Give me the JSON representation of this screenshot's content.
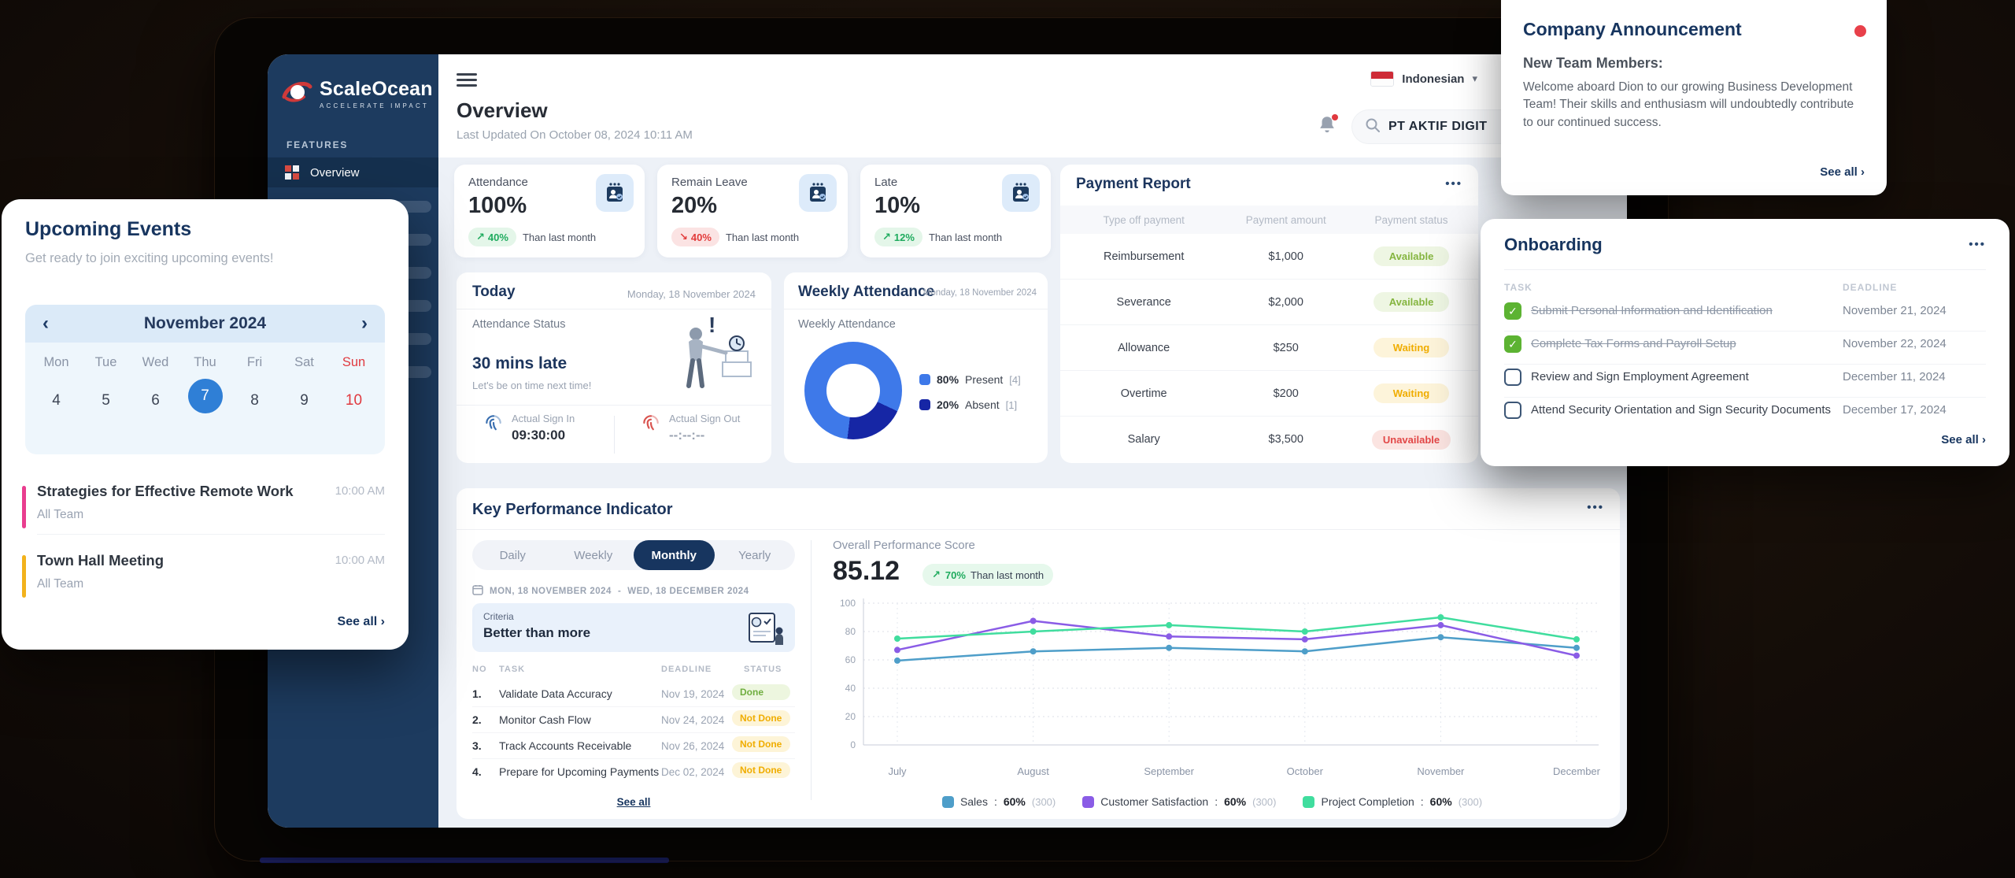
{
  "icons": {
    "ellipsis": "•••",
    "chevron_right": "›",
    "chevron_left": "‹",
    "chevron_down": "▾",
    "check": "✓",
    "trend_up": "↗",
    "trend_down": "↘"
  },
  "sidebar": {
    "logo_title": "ScaleOcean",
    "logo_subtitle": "ACCELERATE IMPACT",
    "section_label": "FEATURES",
    "active_item": "Overview"
  },
  "header": {
    "language": "Indonesian",
    "search_value": "PT AKTIF DIGIT",
    "page_title": "Overview",
    "last_updated": "Last Updated On October 08, 2024 10:11 AM"
  },
  "stats": [
    {
      "label": "Attendance",
      "value": "100%",
      "delta": "40%",
      "trend": "up",
      "note": "Than last month"
    },
    {
      "label": "Remain Leave",
      "value": "20%",
      "delta": "40%",
      "trend": "down",
      "note": "Than last month"
    },
    {
      "label": "Late",
      "value": "10%",
      "delta": "12%",
      "trend": "up",
      "note": "Than last month"
    }
  ],
  "today": {
    "title": "Today",
    "date": "Monday, 18 November 2024",
    "status_label": "Attendance Status",
    "status_value": "30 mins late",
    "status_note": "Let's be on time next time!",
    "sign_in_label": "Actual Sign In",
    "sign_in_value": "09:30:00",
    "sign_out_label": "Actual Sign Out",
    "sign_out_value": "--:--:--"
  },
  "weekly_attendance": {
    "title": "Weekly Attendance",
    "date": "Monday, 18 November 2024",
    "subtitle": "Weekly Attendance",
    "donut": {
      "present_pct": 80,
      "absent_pct": 20,
      "present_color": "#3e79e9",
      "absent_color": "#1626a5"
    },
    "legend": [
      {
        "pct": "80%",
        "label": "Present",
        "count": "[4]"
      },
      {
        "pct": "20%",
        "label": "Absent",
        "count": "[1]"
      }
    ]
  },
  "payment_report": {
    "title": "Payment Report",
    "columns": [
      "Type off payment",
      "Payment amount",
      "Payment status"
    ],
    "rows": [
      {
        "type": "Reimbursement",
        "amount": "$1,000",
        "status": "Available"
      },
      {
        "type": "Severance",
        "amount": "$2,000",
        "status": "Available"
      },
      {
        "type": "Allowance",
        "amount": "$250",
        "status": "Waiting"
      },
      {
        "type": "Overtime",
        "amount": "$200",
        "status": "Waiting"
      },
      {
        "type": "Salary",
        "amount": "$3,500",
        "status": "Unavailable"
      }
    ]
  },
  "kpi": {
    "title": "Key Performance Indicator",
    "tabs": [
      "Daily",
      "Weekly",
      "Monthly",
      "Yearly"
    ],
    "active_tab": "Monthly",
    "date_range_start": "MON, 18 NOVEMBER 2024",
    "date_range_sep": "-",
    "date_range_end": "WED, 18 DECEMBER 2024",
    "criteria_label": "Criteria",
    "criteria_value": "Better than more",
    "table_columns": {
      "no": "NO",
      "task": "TASK",
      "deadline": "DEADLINE",
      "status": "STATUS"
    },
    "tasks": [
      {
        "no": "1.",
        "task": "Validate Data Accuracy",
        "deadline": "Nov 19, 2024",
        "status": "Done"
      },
      {
        "no": "2.",
        "task": "Monitor Cash Flow",
        "deadline": "Nov 24, 2024",
        "status": "Not Done"
      },
      {
        "no": "3.",
        "task": "Track Accounts Receivable",
        "deadline": "Nov 26, 2024",
        "status": "Not Done"
      },
      {
        "no": "4.",
        "task": "Prepare for Upcoming Payments",
        "deadline": "Dec 02, 2024",
        "status": "Not Done"
      }
    ],
    "see_all": "See all",
    "score_label": "Overall Performance Score",
    "score_value": "85.12",
    "score_delta": "70%",
    "score_note": "Than last month"
  },
  "chart_data": {
    "type": "line",
    "title": "Overall Performance Score",
    "x": [
      "July",
      "August",
      "September",
      "October",
      "November",
      "December"
    ],
    "ylim": [
      0,
      100
    ],
    "yticks": [
      0,
      20,
      40,
      60,
      80,
      100
    ],
    "grid": true,
    "legend_position": "bottom",
    "series": [
      {
        "name": "Sales",
        "color": "#4e9ec9",
        "values": [
          59.5,
          66,
          68.5,
          66,
          76,
          68.5
        ],
        "legend_value": "60%",
        "legend_total": "(300)"
      },
      {
        "name": "Customer Satisfaction",
        "color": "#8a5ce6",
        "values": [
          67,
          87.5,
          76.5,
          74.5,
          84.5,
          63
        ],
        "legend_value": "60%",
        "legend_total": "(300)"
      },
      {
        "name": "Project Completion",
        "color": "#40dd9e",
        "values": [
          75,
          80,
          84.5,
          80,
          90,
          74.5
        ],
        "legend_value": "60%",
        "legend_total": "(300)"
      }
    ]
  },
  "onboarding": {
    "title": "Onboarding",
    "col_task": "TASK",
    "col_deadline": "DEADLINE",
    "rows": [
      {
        "task": "Submit Personal Information and Identification",
        "deadline": "November 21, 2024",
        "done": true
      },
      {
        "task": "Complete Tax Forms and Payroll Setup",
        "deadline": "November 22, 2024",
        "done": true
      },
      {
        "task": "Review and Sign Employment Agreement",
        "deadline": "December 11, 2024",
        "done": false
      },
      {
        "task": "Attend Security Orientation and Sign Security Documents",
        "deadline": "December 17, 2024",
        "done": false
      }
    ],
    "see_all": "See all"
  },
  "announcement": {
    "title": "Company Announcement",
    "heading": "New Team Members:",
    "body": "Welcome aboard Dion to our growing Business Development Team! Their skills and enthusiasm will undoubtedly contribute to our continued success.",
    "see_all": "See all"
  },
  "events": {
    "title": "Upcoming Events",
    "subtitle": "Get ready to join exciting upcoming events!",
    "calendar": {
      "month": "November 2024",
      "day_names": [
        "Mon",
        "Tue",
        "Wed",
        "Thu",
        "Fri",
        "Sat",
        "Sun"
      ],
      "dates": [
        "4",
        "5",
        "6",
        "7",
        "8",
        "9",
        "10"
      ],
      "selected_date": "7"
    },
    "items": [
      {
        "title": "Strategies for Effective Remote Work",
        "team": "All Team",
        "time": "10:00 AM",
        "accent": "#e93d8f"
      },
      {
        "title": "Town Hall Meeting",
        "team": "All Team",
        "time": "10:00 AM",
        "accent": "#f2b21c"
      }
    ],
    "see_all": "See all"
  }
}
